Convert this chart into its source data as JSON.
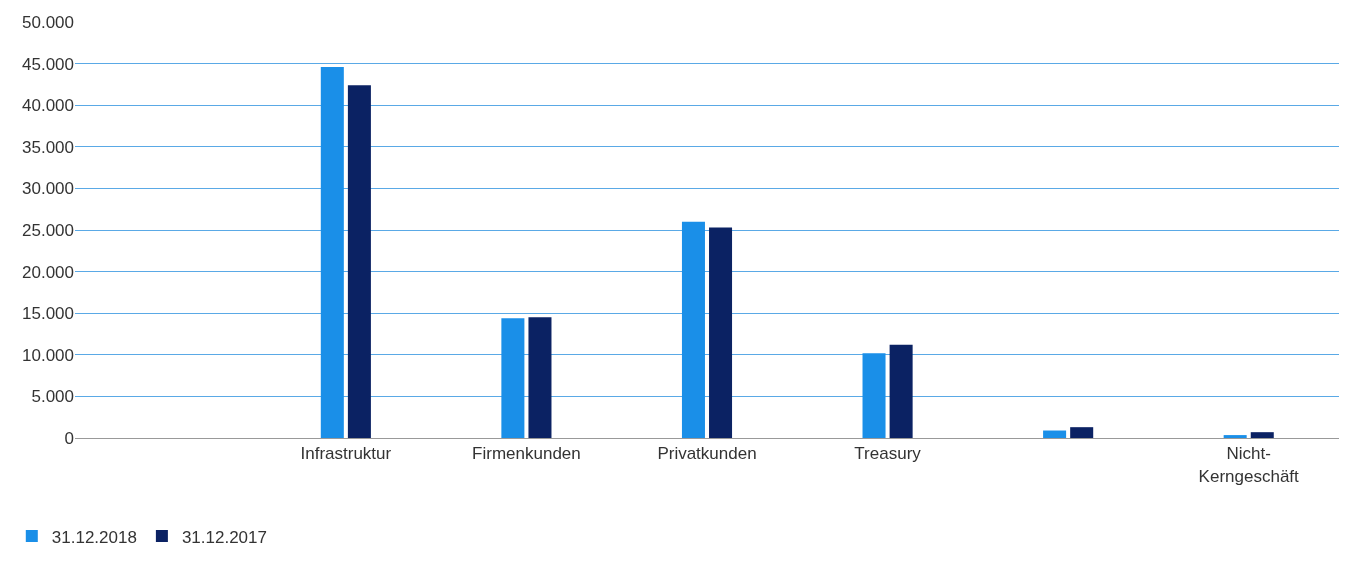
{
  "chart_data": {
    "type": "bar",
    "categories": [
      null,
      "Infrastruktur",
      "Firmenkunden",
      "Privatkunden",
      "Treasury",
      null,
      "Nicht-\nKerngeschäft"
    ],
    "series": [
      {
        "name": "31.12.2018",
        "color": "#1a8fe8",
        "values": [
          null,
          44600,
          14400,
          26000,
          10200,
          900,
          350
        ]
      },
      {
        "name": "31.12.2017",
        "color": "#0b2263",
        "values": [
          null,
          42400,
          14500,
          25300,
          11200,
          1300,
          700
        ]
      }
    ],
    "ylim": [
      0,
      50000
    ],
    "yticks": [
      0,
      {
        "value": 5000,
        "label": "5.000"
      },
      {
        "value": 10000,
        "label": "10.000"
      },
      {
        "value": 15000,
        "label": "15.000"
      },
      {
        "value": 20000,
        "label": "20.000"
      },
      {
        "value": 25000,
        "label": "25.000"
      },
      {
        "value": 30000,
        "label": "30.000"
      },
      {
        "value": 35000,
        "label": "35.000"
      },
      {
        "value": 40000,
        "label": "40.000"
      },
      {
        "value": 45000,
        "label": "45.000"
      },
      {
        "value": 50000,
        "label": "50.000"
      }
    ],
    "grid": "y",
    "legend": "bottom left"
  }
}
